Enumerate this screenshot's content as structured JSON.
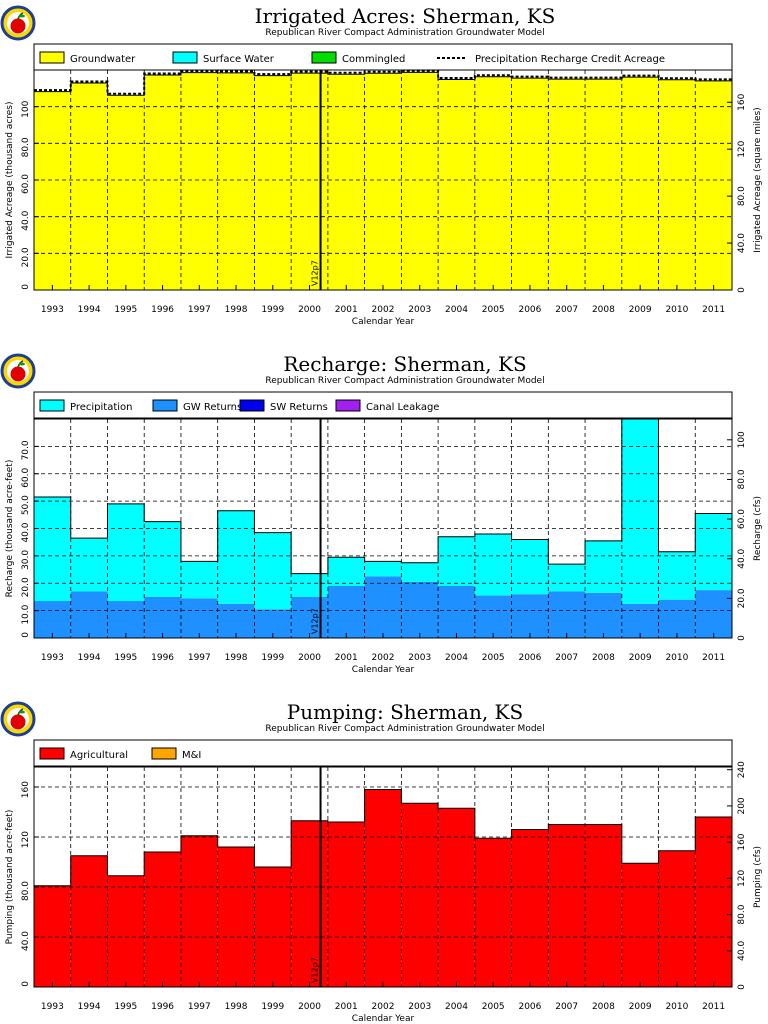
{
  "logo": {
    "name": "apple-logo"
  },
  "chart_data": [
    {
      "type": "bar",
      "stacked": true,
      "title": "Irrigated Acres: Sherman, KS",
      "subtitle": "Republican River Compact Administration Groundwater Model",
      "xlabel": "Calendar Year",
      "ylabel": "Irrigated Acreage (thousand acres)",
      "y2label": "Irrigated Acreage (square miles)",
      "categories": [
        "1993",
        "1994",
        "1995",
        "1996",
        "1997",
        "1998",
        "1999",
        "2000",
        "2001",
        "2002",
        "2003",
        "2004",
        "2005",
        "2006",
        "2007",
        "2008",
        "2009",
        "2010",
        "2011"
      ],
      "ylim": [
        0,
        120
      ],
      "yticks": [
        "0",
        "20.0",
        "40.0",
        "60.0",
        "80.0",
        "100"
      ],
      "y2lim": [
        0,
        187.5
      ],
      "y2ticks": [
        "0",
        "40.0",
        "80.0",
        "120",
        "160"
      ],
      "grid": true,
      "legend_position": "top",
      "marker_label": "V12p7",
      "marker_after": "2000",
      "series": [
        {
          "name": "Groundwater",
          "color": "#ffff00",
          "values": [
            108.2,
            112.9,
            106.2,
            117.3,
            118.6,
            118.4,
            116.9,
            118.3,
            117.7,
            118.2,
            118.7,
            114.8,
            116.3,
            115.6,
            115.0,
            115.0,
            116.1,
            114.7,
            114.1
          ]
        },
        {
          "name": "Surface Water",
          "color": "#00ffff",
          "values": [
            0,
            0,
            0,
            0,
            0,
            0,
            0,
            0,
            0,
            0,
            0,
            0,
            0,
            0,
            0,
            0,
            0,
            0,
            0
          ]
        },
        {
          "name": "Commingled",
          "color": "#00dd00",
          "values": [
            0,
            0,
            0,
            0,
            0,
            0,
            0,
            0,
            0,
            0,
            0,
            0,
            0,
            0,
            0,
            0,
            0,
            0,
            0
          ]
        }
      ],
      "line_series": {
        "name": "Precipitation Recharge Credit Acreage",
        "style": "dashed",
        "values": [
          108.2,
          112.9,
          106.2,
          117.3,
          118.6,
          118.4,
          116.9,
          118.3,
          117.7,
          118.2,
          118.7,
          114.8,
          116.3,
          115.6,
          115.0,
          115.0,
          116.1,
          114.7,
          114.1
        ]
      }
    },
    {
      "type": "bar",
      "stacked": true,
      "title": "Recharge: Sherman, KS",
      "subtitle": "Republican River Compact Administration Groundwater Model",
      "xlabel": "Calendar Year",
      "ylabel": "Recharge (thousand acre-feet)",
      "y2label": "Recharge (cfs)",
      "categories": [
        "1993",
        "1994",
        "1995",
        "1996",
        "1997",
        "1998",
        "1999",
        "2000",
        "2001",
        "2002",
        "2003",
        "2004",
        "2005",
        "2006",
        "2007",
        "2008",
        "2009",
        "2010",
        "2011"
      ],
      "ylim": [
        0,
        80
      ],
      "yticks": [
        "0",
        "10.0",
        "20.0",
        "30.0",
        "40.0",
        "50.0",
        "60.0",
        "70.0"
      ],
      "y2lim": [
        0,
        110.5
      ],
      "y2ticks": [
        "0",
        "20.0",
        "40.0",
        "60.0",
        "80.0",
        "100"
      ],
      "grid": true,
      "legend_position": "top",
      "marker_label": "V12p7",
      "marker_after": "2000",
      "series": [
        {
          "name": "GW Returns",
          "color": "#1e90ff",
          "values": [
            13.5,
            17.0,
            13.5,
            15.0,
            14.5,
            12.5,
            10.5,
            15.0,
            19.0,
            22.5,
            20.5,
            19.0,
            15.5,
            16.0,
            17.0,
            16.5,
            12.5,
            14.0,
            17.5
          ]
        },
        {
          "name": "Precipitation",
          "color": "#00ffff",
          "values": [
            38.0,
            19.5,
            35.5,
            27.5,
            13.5,
            34.0,
            28.0,
            8.5,
            10.5,
            5.5,
            7.0,
            18.0,
            22.5,
            20.0,
            10.0,
            19.0,
            67.5,
            17.5,
            28.0
          ]
        },
        {
          "name": "SW Returns",
          "color": "#0000ee",
          "values": [
            0,
            0,
            0,
            0,
            0,
            0,
            0,
            0,
            0,
            0,
            0,
            0,
            0,
            0,
            0,
            0,
            0,
            0,
            0
          ]
        },
        {
          "name": "Canal Leakage",
          "color": "#a020f0",
          "values": [
            0,
            0,
            0,
            0,
            0,
            0,
            0,
            0,
            0,
            0,
            0,
            0,
            0,
            0,
            0,
            0,
            0,
            0,
            0
          ]
        }
      ],
      "legend_order": [
        "Precipitation",
        "GW Returns",
        "SW Returns",
        "Canal Leakage"
      ]
    },
    {
      "type": "bar",
      "stacked": true,
      "title": "Pumping: Sherman, KS",
      "subtitle": "Republican River Compact Administration Groundwater Model",
      "xlabel": "Calendar Year",
      "ylabel": "Pumping (thousand acre-feet)",
      "y2label": "Pumping (cfs)",
      "categories": [
        "1993",
        "1994",
        "1995",
        "1996",
        "1997",
        "1998",
        "1999",
        "2000",
        "2001",
        "2002",
        "2003",
        "2004",
        "2005",
        "2006",
        "2007",
        "2008",
        "2009",
        "2010",
        "2011"
      ],
      "ylim": [
        0,
        176
      ],
      "yticks": [
        "0",
        "40.0",
        "80.0",
        "120",
        "160"
      ],
      "y2lim": [
        0,
        243
      ],
      "y2ticks": [
        "0",
        "40.0",
        "80.0",
        "120",
        "160",
        "200",
        "240"
      ],
      "grid": true,
      "legend_position": "top",
      "marker_label": "V12p7",
      "marker_after": "2000",
      "series": [
        {
          "name": "Agricultural",
          "color": "#ff0000",
          "values": [
            81,
            105,
            89,
            108,
            121,
            112,
            96,
            133,
            132,
            158,
            147,
            143,
            119,
            126,
            130,
            130,
            99,
            109,
            136
          ]
        },
        {
          "name": "M&I",
          "color": "#ffa500",
          "values": [
            0,
            0,
            0,
            0,
            0,
            0,
            0,
            0,
            0,
            0,
            0,
            0,
            0,
            0,
            0,
            0,
            0,
            0,
            0
          ]
        }
      ]
    }
  ]
}
